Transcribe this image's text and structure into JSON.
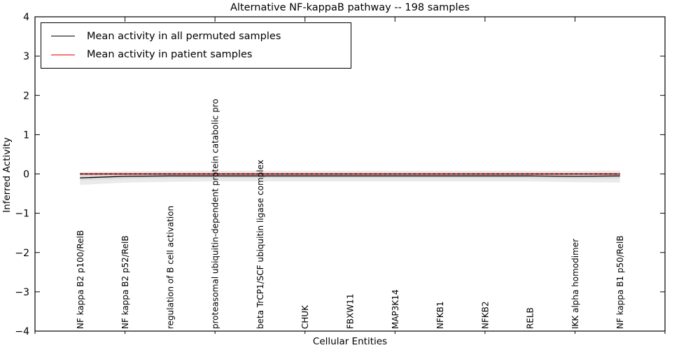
{
  "chart_data": {
    "type": "line",
    "title": "Alternative NF-kappaB pathway -- 198 samples",
    "xlabel": "Cellular Entities",
    "ylabel": "Inferred Activity",
    "xlim": [
      0,
      14
    ],
    "ylim": [
      -4,
      4
    ],
    "xticks": [
      0,
      2,
      4,
      6,
      8,
      10,
      12,
      14
    ],
    "xtick_numbers_shown": false,
    "yticks": [
      -4,
      -3,
      -2,
      -1,
      0,
      1,
      2,
      3,
      4
    ],
    "grid": false,
    "legend": {
      "position": "upper-left",
      "entries": [
        {
          "label": "Mean activity in all permuted samples",
          "color": "#000000",
          "style": "solid"
        },
        {
          "label": "Mean activity in patient samples",
          "color": "#f00000",
          "style": "solid"
        }
      ]
    },
    "x": [
      1,
      2,
      3,
      4,
      5,
      6,
      7,
      8,
      9,
      10,
      11,
      12,
      13
    ],
    "categories": [
      "NF kappa B2 p100/RelB",
      "NF kappa B2 p52/RelB",
      "regulation of B cell activation",
      "proteasomal ubiquitin-dependent protein catabolic pro",
      "beta TrCP1/SCF ubiquitin ligase complex",
      "CHUK",
      "FBXW11",
      "MAP3K14",
      "NFKB1",
      "NFKB2",
      "RELB",
      "IKK alpha homodimer",
      "NF kappa B1 p50/RelB"
    ],
    "series": [
      {
        "name": "Mean activity in all permuted samples",
        "color": "#000000",
        "style": "solid",
        "width": 1.3,
        "values": [
          -0.1,
          -0.06,
          -0.05,
          -0.05,
          -0.05,
          -0.05,
          -0.05,
          -0.05,
          -0.05,
          -0.05,
          -0.05,
          -0.06,
          -0.05
        ]
      },
      {
        "name": "Mean activity in patient samples",
        "color": "#f00000",
        "style": "solid",
        "width": 1.8,
        "values": [
          0.0,
          0.0,
          0.0,
          0.0,
          0.0,
          0.0,
          0.0,
          0.0,
          0.0,
          0.0,
          0.0,
          0.0,
          0.0
        ]
      },
      {
        "name": "zero-reference-dashed",
        "color": "#000000",
        "style": "dashed",
        "width": 1.2,
        "values": [
          0.0,
          0.0,
          0.0,
          0.0,
          0.0,
          0.0,
          0.0,
          0.0,
          0.0,
          0.0,
          0.0,
          0.0,
          0.0
        ]
      }
    ],
    "bands": [
      {
        "name": "permuted-spread-outer",
        "color": "#eaeaea",
        "upper": [
          0.05,
          0.07,
          0.08,
          0.08,
          0.08,
          0.08,
          0.08,
          0.08,
          0.08,
          0.08,
          0.08,
          0.08,
          0.09
        ],
        "lower": [
          -0.28,
          -0.22,
          -0.2,
          -0.19,
          -0.19,
          -0.19,
          -0.19,
          -0.19,
          -0.19,
          -0.19,
          -0.19,
          -0.21,
          -0.22
        ]
      },
      {
        "name": "permuted-spread-inner",
        "color": "#dcdcdc",
        "upper": [
          0.01,
          0.02,
          0.02,
          0.02,
          0.02,
          0.02,
          0.02,
          0.02,
          0.02,
          0.02,
          0.02,
          0.02,
          0.02
        ],
        "lower": [
          -0.16,
          -0.12,
          -0.11,
          -0.11,
          -0.11,
          -0.11,
          -0.11,
          -0.11,
          -0.11,
          -0.11,
          -0.11,
          -0.12,
          -0.12
        ]
      }
    ]
  }
}
